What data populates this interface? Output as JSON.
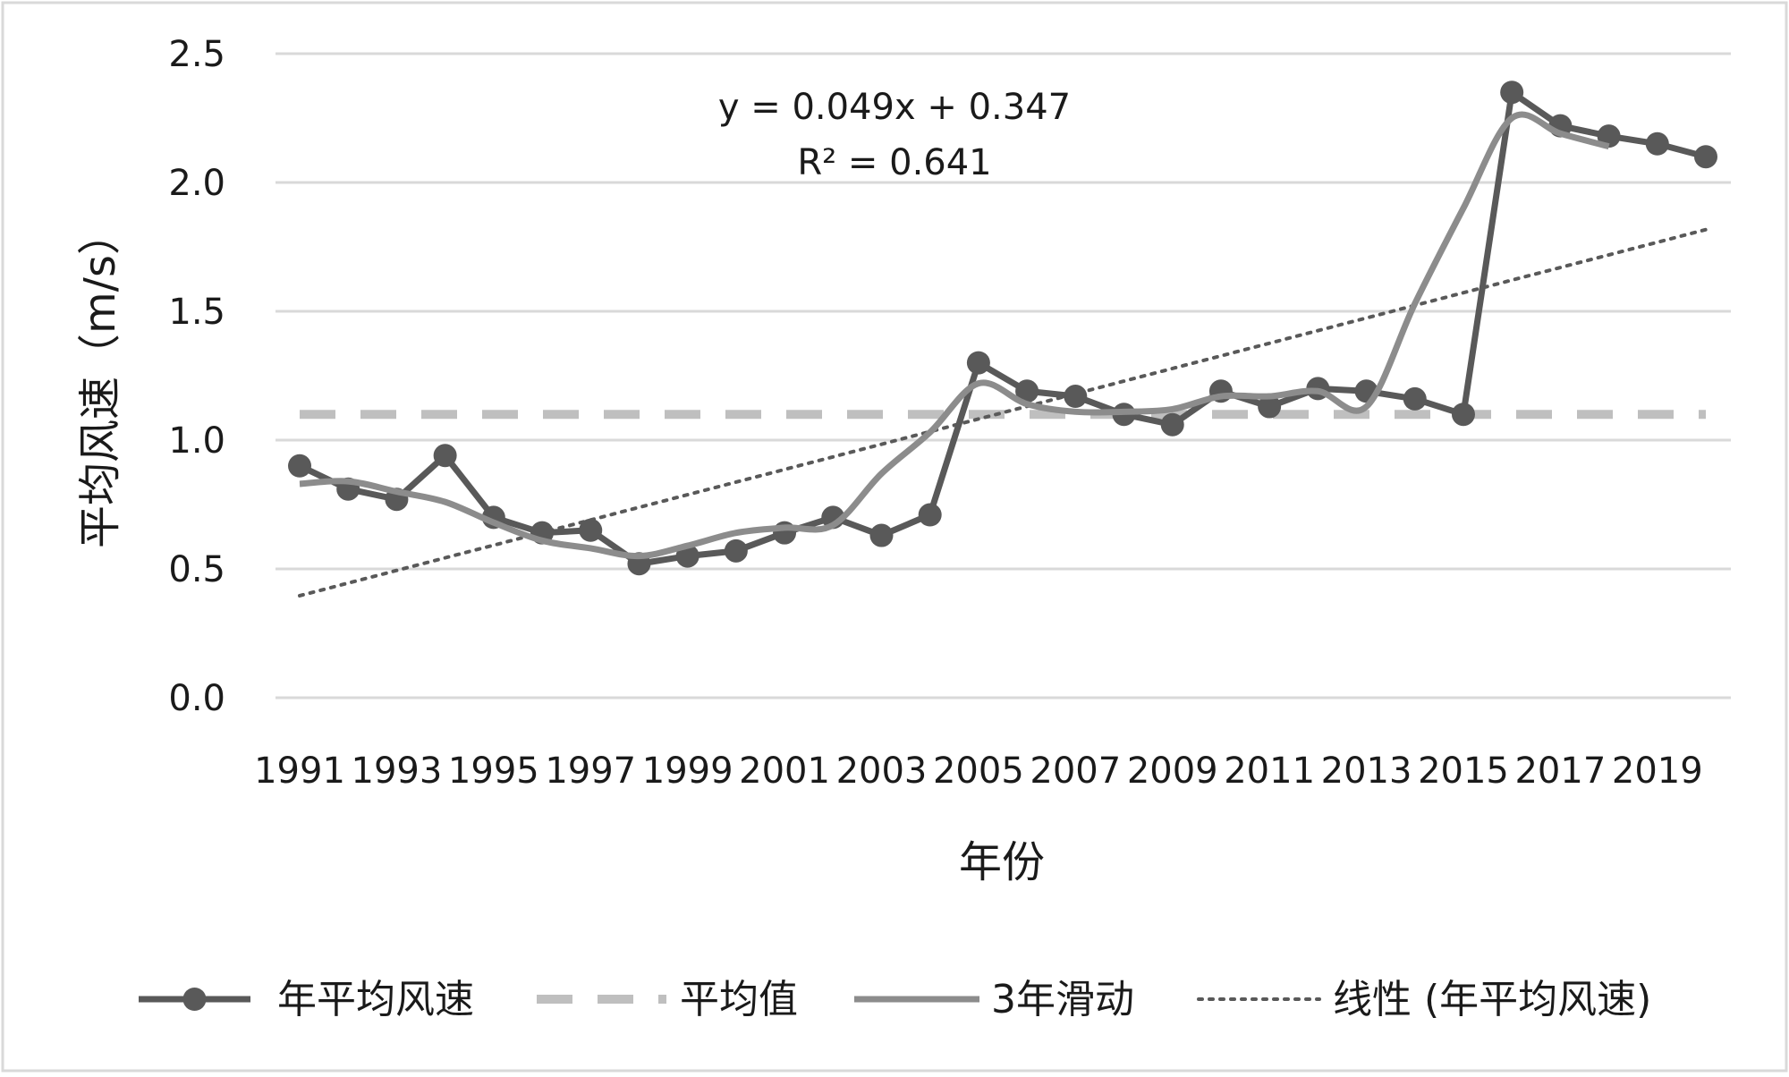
{
  "chart_data": {
    "type": "line",
    "xlabel": "年份",
    "ylabel": "平均风速（m/s）",
    "ylim": [
      0,
      2.5
    ],
    "y_ticks": [
      "0.0",
      "0.5",
      "1.0",
      "1.5",
      "2.0",
      "2.5"
    ],
    "x": [
      1991,
      1992,
      1993,
      1994,
      1995,
      1996,
      1997,
      1998,
      1999,
      2000,
      2001,
      2002,
      2003,
      2004,
      2005,
      2006,
      2007,
      2008,
      2009,
      2010,
      2011,
      2012,
      2013,
      2014,
      2015,
      2016,
      2017,
      2018,
      2019,
      2020
    ],
    "x_tick_labels": [
      "1991",
      "1993",
      "1995",
      "1997",
      "1999",
      "2001",
      "2003",
      "2005",
      "2007",
      "2009",
      "2011",
      "2013",
      "2015",
      "2017",
      "2019"
    ],
    "grid": "horizontal",
    "legend_position": "bottom",
    "series": [
      {
        "name": "年平均风速",
        "style": "solid-markers",
        "color": "#595959",
        "values": [
          0.9,
          0.81,
          0.77,
          0.94,
          0.7,
          0.64,
          0.65,
          0.52,
          0.55,
          0.57,
          0.64,
          0.7,
          0.63,
          0.71,
          1.3,
          1.19,
          1.17,
          1.1,
          1.06,
          1.19,
          1.13,
          1.2,
          1.19,
          1.16,
          1.1,
          2.35,
          2.22,
          2.18,
          2.15,
          2.1
        ]
      },
      {
        "name": "平均值",
        "style": "dashed",
        "color": "#bfbfbf",
        "values": [
          1.1,
          1.1,
          1.1,
          1.1,
          1.1,
          1.1,
          1.1,
          1.1,
          1.1,
          1.1,
          1.1,
          1.1,
          1.1,
          1.1,
          1.1,
          1.1,
          1.1,
          1.1,
          1.1,
          1.1,
          1.1,
          1.1,
          1.1,
          1.1,
          1.1,
          1.1,
          1.1,
          1.1,
          1.1,
          1.1
        ]
      },
      {
        "name": "3年滑动",
        "style": "smooth",
        "color": "#8c8c8c",
        "values": [
          0.83,
          0.84,
          0.8,
          0.76,
          0.68,
          0.61,
          0.58,
          0.55,
          0.59,
          0.64,
          0.66,
          0.67,
          0.87,
          1.03,
          1.22,
          1.14,
          1.11,
          1.11,
          1.12,
          1.17,
          1.17,
          1.19,
          1.13,
          1.53,
          1.9,
          2.25,
          2.19,
          2.14,
          null,
          null
        ]
      },
      {
        "name": "线性 (年平均风速)",
        "style": "dotted",
        "color": "#595959",
        "values": [
          0.396,
          0.445,
          0.494,
          0.543,
          0.592,
          0.641,
          0.69,
          0.739,
          0.788,
          0.837,
          0.886,
          0.935,
          0.984,
          1.033,
          1.082,
          1.131,
          1.18,
          1.229,
          1.278,
          1.327,
          1.376,
          1.425,
          1.474,
          1.523,
          1.572,
          1.621,
          1.67,
          1.719,
          1.768,
          1.817
        ]
      }
    ],
    "annotations": [
      {
        "text": "y = 0.049x + 0.347"
      },
      {
        "text": "R² = 0.641"
      }
    ]
  }
}
